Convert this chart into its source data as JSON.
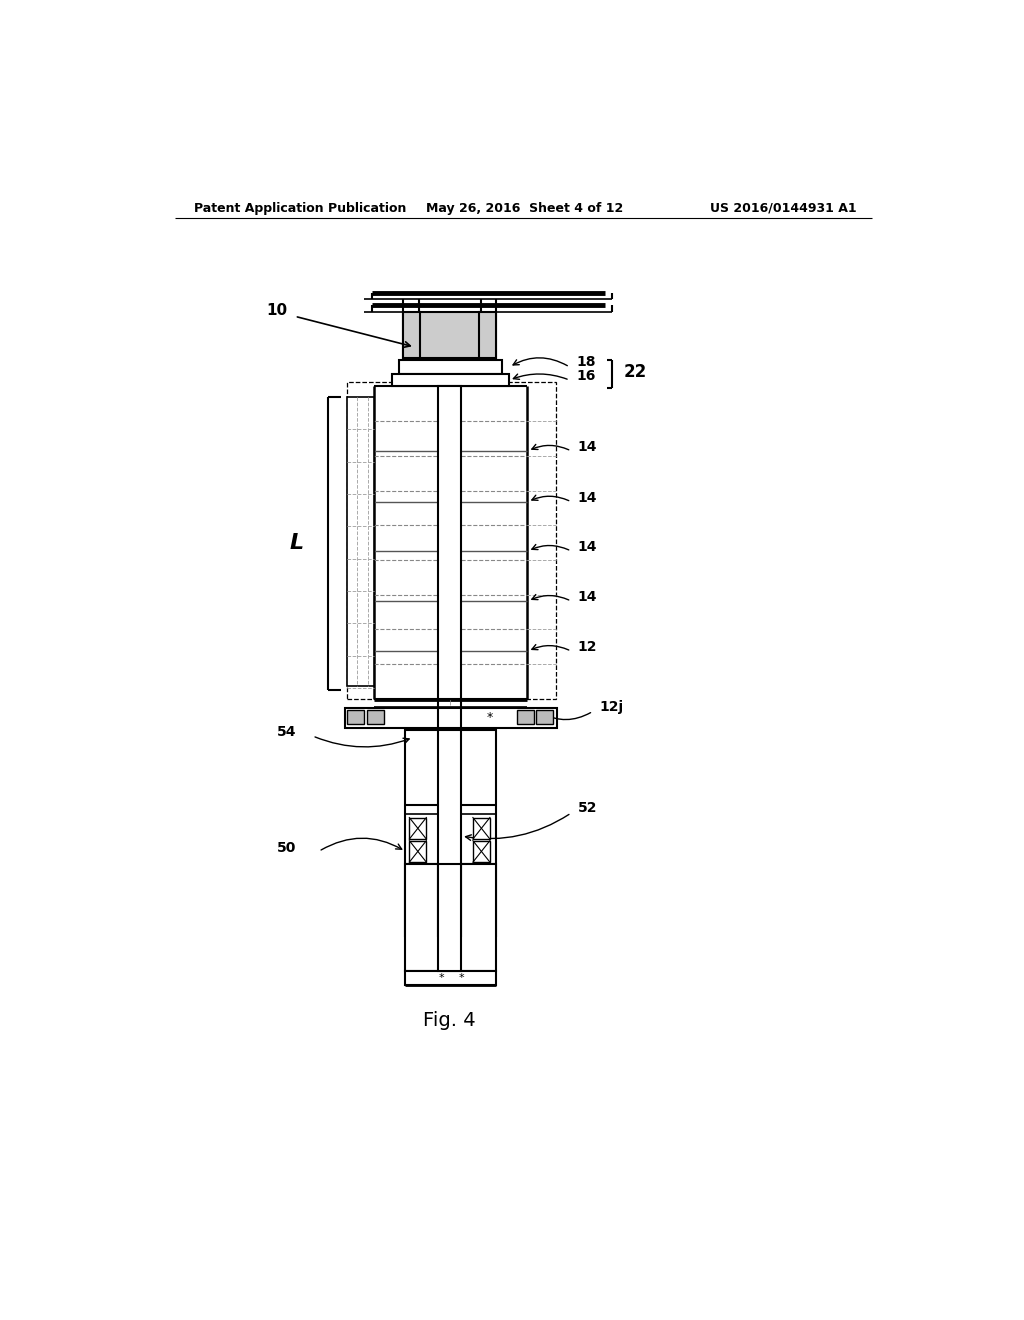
{
  "bg_color": "#ffffff",
  "header_left": "Patent Application Publication",
  "header_mid": "May 26, 2016  Sheet 4 of 12",
  "header_right": "US 2016/0144931 A1",
  "footer_label": "Fig. 4"
}
